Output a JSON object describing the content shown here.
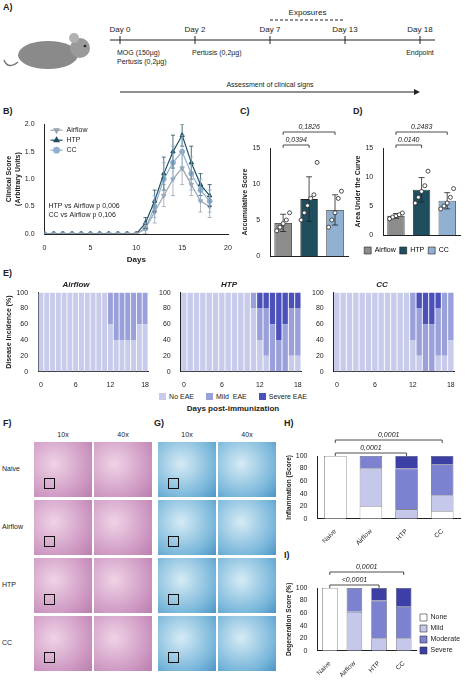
{
  "timeline": {
    "panel": "A)",
    "days": [
      "Day 0",
      "Day 2",
      "Day 7",
      "Day 13",
      "Day 18"
    ],
    "exposures": "Exposures",
    "exposure_span": [
      "Day 7",
      "Day 13"
    ],
    "notes": [
      {
        "day": "Day 0",
        "lines": [
          "MOG (150µg)",
          "Pertusis (0,2µg)"
        ]
      },
      {
        "day": "Day 2",
        "lines": [
          "Pertusis (0,2µg)"
        ]
      },
      {
        "day": "Day 18",
        "lines": [
          "Endpoint"
        ]
      }
    ],
    "assessment": "Assessment of clinical signs"
  },
  "chart_data": [
    {
      "panel": "B)",
      "type": "line",
      "x_label": "Days",
      "y_label": [
        "Clinical Score",
        "(Arbitrary Units)"
      ],
      "x": [
        0,
        1,
        2,
        3,
        4,
        5,
        6,
        7,
        8,
        9,
        10,
        11,
        12,
        13,
        14,
        15,
        16,
        17,
        18
      ],
      "xlim": [
        0,
        20
      ],
      "xticks": [
        0,
        5,
        10,
        15,
        20
      ],
      "ylim": [
        0,
        2
      ],
      "yticks": [
        {
          "value": 0,
          "label": "0.0"
        },
        {
          "value": 0.5,
          "label": "0.5"
        },
        {
          "value": 1,
          "label": "1.0"
        },
        {
          "value": 1.5,
          "label": "1.5"
        },
        {
          "value": 2,
          "label": "2.0"
        }
      ],
      "grid": false,
      "legend": "top-left",
      "series": [
        {
          "name": "Airflow",
          "color": "#9aa5b1",
          "marker": "triangle_down",
          "values": [
            0,
            0,
            0,
            0,
            0,
            0,
            0,
            0,
            0,
            0,
            0,
            0.1,
            0.4,
            0.7,
            1.0,
            1.2,
            0.9,
            0.6,
            0.5
          ],
          "errors": [
            0,
            0,
            0,
            0,
            0,
            0,
            0,
            0,
            0,
            0,
            0,
            0.1,
            0.2,
            0.2,
            0.3,
            0.3,
            0.2,
            0.2,
            0.2
          ]
        },
        {
          "name": "HTP",
          "color": "#1f4e5f",
          "marker": "triangle",
          "values": [
            0,
            0,
            0,
            0,
            0,
            0,
            0,
            0,
            0,
            0,
            0,
            0.2,
            0.6,
            1.1,
            1.5,
            1.8,
            1.3,
            0.9,
            0.7
          ],
          "errors": [
            0,
            0,
            0,
            0,
            0,
            0,
            0,
            0,
            0,
            0,
            0,
            0.1,
            0.2,
            0.3,
            0.3,
            0.2,
            0.3,
            0.2,
            0.2
          ]
        },
        {
          "name": "CC",
          "color": "#8fb0d0",
          "marker": "circle",
          "values": [
            0,
            0,
            0,
            0,
            0,
            0,
            0,
            0,
            0,
            0,
            0,
            0.1,
            0.5,
            1.0,
            1.3,
            1.5,
            1.1,
            0.8,
            0.6
          ],
          "errors": [
            0,
            0,
            0,
            0,
            0,
            0,
            0,
            0,
            0,
            0,
            0,
            0.1,
            0.2,
            0.3,
            0.3,
            0.3,
            0.3,
            0.2,
            0.2
          ]
        }
      ],
      "annotations": [
        "HTP vs Airflow p 0,006",
        "CC vs Airflow p 0,106"
      ]
    },
    {
      "panel": "C)",
      "type": "bar",
      "y_label": "Accumulative Score",
      "categories": [
        "Airflow",
        "HTP",
        "CC"
      ],
      "values": [
        4.6,
        7.9,
        6.4
      ],
      "errors": [
        1.2,
        3.1,
        2.1
      ],
      "points": [
        [
          3.5,
          4,
          4.5,
          5,
          6
        ],
        [
          5,
          6,
          7,
          8,
          8.5,
          13
        ],
        [
          4,
          5,
          6,
          8,
          9
        ]
      ],
      "colors": [
        "#8c8c8c",
        "#1f4e5f",
        "#8fb0d0"
      ],
      "ylim": [
        0,
        15
      ],
      "yticks": [
        0,
        5,
        10,
        15
      ],
      "grid": false,
      "tick_labels": "y",
      "annotations": [
        {
          "text": "0,0394",
          "between": [
            "Airflow",
            "HTP"
          ]
        },
        {
          "text": "0,1826",
          "between": [
            "Airflow",
            "CC"
          ]
        }
      ]
    },
    {
      "panel": "D)",
      "type": "bar",
      "y_label": "Area Under the Curve",
      "categories": [
        "Airflow",
        "HTP",
        "CC"
      ],
      "values": [
        3.3,
        7.8,
        5.9
      ],
      "errors": [
        0.4,
        2.1,
        1.4
      ],
      "points": [
        [
          2.8,
          3.1,
          3.3,
          3.5,
          3.8
        ],
        [
          5.5,
          6.5,
          7.5,
          8.5,
          11
        ],
        [
          4.5,
          5,
          5.5,
          6.5,
          8
        ]
      ],
      "colors": [
        "#8c8c8c",
        "#1f4e5f",
        "#8fb0d0"
      ],
      "ylim": [
        0,
        15
      ],
      "yticks": [
        0,
        5,
        10,
        15
      ],
      "grid": false,
      "tick_labels": "y",
      "legend": "bottom",
      "annotations": [
        {
          "text": "0.0140",
          "between": [
            "Airflow",
            "HTP"
          ]
        },
        {
          "text": "0.2483",
          "between": [
            "Airflow",
            "CC"
          ]
        }
      ]
    },
    {
      "panel": "E)",
      "type": "bar",
      "stacked": true,
      "y_label": "Disease Incidence (%)",
      "x_label": "Days post-immunization",
      "categories": [
        "0",
        null,
        null,
        null,
        null,
        null,
        "6",
        null,
        null,
        null,
        null,
        null,
        "12",
        null,
        null,
        null,
        null,
        null,
        "18"
      ],
      "ylim": [
        0,
        100
      ],
      "yticks": [
        0,
        20,
        40,
        60,
        80,
        100
      ],
      "grid": false,
      "legend": "bottom",
      "subplots": [
        {
          "title": "Airflow",
          "series": [
            {
              "name": "No EAE",
              "color": "#c8cbea",
              "values": [
                100,
                100,
                100,
                100,
                100,
                100,
                100,
                100,
                100,
                100,
                100,
                100,
                60,
                40,
                40,
                40,
                40,
                60,
                60
              ]
            },
            {
              "name": "Mild  EAE",
              "color": "#9aa0da",
              "values": [
                0,
                0,
                0,
                0,
                0,
                0,
                0,
                0,
                0,
                0,
                0,
                0,
                40,
                60,
                60,
                60,
                60,
                40,
                40
              ]
            },
            {
              "name": "Severe EAE",
              "color": "#4b51b8",
              "values": [
                0,
                0,
                0,
                0,
                0,
                0,
                0,
                0,
                0,
                0,
                0,
                0,
                0,
                0,
                0,
                0,
                0,
                0,
                0
              ]
            }
          ]
        },
        {
          "title": "HTP",
          "series": [
            {
              "name": "No EAE",
              "color": "#c8cbea",
              "values": [
                100,
                100,
                100,
                100,
                100,
                100,
                100,
                100,
                100,
                100,
                100,
                80,
                40,
                20,
                0,
                0,
                0,
                20,
                20
              ]
            },
            {
              "name": "Mild  EAE",
              "color": "#9aa0da",
              "values": [
                0,
                0,
                0,
                0,
                0,
                0,
                0,
                0,
                0,
                0,
                0,
                20,
                40,
                60,
                60,
                40,
                60,
                60,
                60
              ]
            },
            {
              "name": "Severe EAE",
              "color": "#4b51b8",
              "values": [
                0,
                0,
                0,
                0,
                0,
                0,
                0,
                0,
                0,
                0,
                0,
                0,
                20,
                20,
                40,
                60,
                40,
                20,
                20
              ]
            }
          ]
        },
        {
          "title": "CC",
          "series": [
            {
              "name": "No EAE",
              "color": "#c8cbea",
              "values": [
                100,
                100,
                100,
                100,
                100,
                100,
                100,
                100,
                100,
                100,
                100,
                100,
                40,
                20,
                0,
                0,
                20,
                20,
                40
              ]
            },
            {
              "name": "Mild  EAE",
              "color": "#9aa0da",
              "values": [
                0,
                0,
                0,
                0,
                0,
                0,
                0,
                0,
                0,
                0,
                0,
                0,
                60,
                60,
                60,
                60,
                60,
                80,
                60
              ]
            },
            {
              "name": "Severe EAE",
              "color": "#4b51b8",
              "values": [
                0,
                0,
                0,
                0,
                0,
                0,
                0,
                0,
                0,
                0,
                0,
                0,
                0,
                20,
                40,
                40,
                20,
                0,
                0
              ]
            }
          ]
        }
      ]
    },
    {
      "panel": "H)",
      "type": "bar",
      "stacked": true,
      "y_label": "Inflammation (Score)",
      "categories": [
        "Naive",
        "Airflow",
        "HTP",
        "CC"
      ],
      "ylim": [
        0,
        100
      ],
      "yticks": [
        0,
        20,
        40,
        60,
        80,
        100
      ],
      "grid": false,
      "series": [
        {
          "name": "None",
          "color": "#ffffff",
          "values": [
            100,
            20,
            0,
            12
          ]
        },
        {
          "name": "Mild",
          "color": "#c5c8ea",
          "values": [
            0,
            60,
            15,
            25
          ]
        },
        {
          "name": "Moderate",
          "color": "#7c82cf",
          "values": [
            0,
            20,
            65,
            50
          ]
        },
        {
          "name": "Severe",
          "color": "#3b3fa6",
          "values": [
            0,
            0,
            20,
            13
          ]
        }
      ],
      "annotations": [
        {
          "text": "0,0001",
          "between": [
            "Naive",
            "HTP"
          ]
        },
        {
          "text": "0,0001",
          "between": [
            "Naive",
            "CC"
          ]
        }
      ]
    },
    {
      "panel": "I)",
      "type": "bar",
      "stacked": true,
      "y_label": "Degeneration Score (%)",
      "categories": [
        "Naive",
        "Airflow",
        "HTP",
        "CC"
      ],
      "ylim": [
        0,
        100
      ],
      "yticks": [
        0,
        20,
        40,
        60,
        80,
        100
      ],
      "grid": false,
      "legend": "right",
      "series": [
        {
          "name": "None",
          "color": "#ffffff",
          "values": [
            100,
            0,
            0,
            0
          ]
        },
        {
          "name": "Mild",
          "color": "#c5c8ea",
          "values": [
            0,
            62,
            20,
            20
          ]
        },
        {
          "name": "Moderate",
          "color": "#7c82cf",
          "values": [
            0,
            38,
            60,
            50
          ]
        },
        {
          "name": "Severe",
          "color": "#3b3fa6",
          "values": [
            0,
            0,
            20,
            30
          ]
        }
      ],
      "annotations": [
        {
          "text": "<0,0001",
          "between": [
            "Naive",
            "HTP"
          ]
        },
        {
          "text": "0,0001",
          "between": [
            "Naive",
            "CC"
          ]
        }
      ]
    }
  ],
  "histology": {
    "panels": [
      "F)",
      "G)"
    ],
    "columns": [
      "10x",
      "40x"
    ],
    "rows": [
      "Naive",
      "Airflow",
      "HTP",
      "CC"
    ]
  }
}
